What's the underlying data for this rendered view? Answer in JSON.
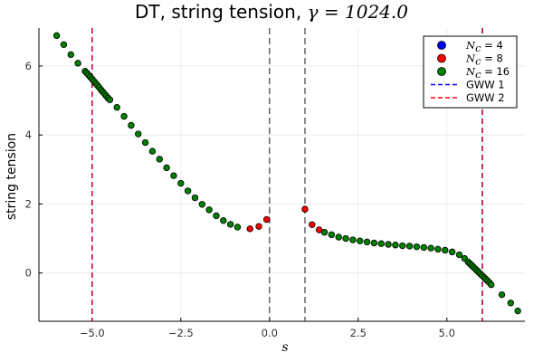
{
  "chart_data": {
    "type": "scatter",
    "title": "DT, string tension,",
    "title_math": "γ = 1024.0",
    "xlabel": "s",
    "ylabel": "string tension",
    "xlim": [
      -6.5,
      7.2
    ],
    "ylim": [
      -1.4,
      7.1
    ],
    "xticks": [
      -5.0,
      -2.5,
      0.0,
      2.5,
      5.0
    ],
    "xtick_labels": [
      "−5.0",
      "−2.5",
      "0.0",
      "2.5",
      "5.0"
    ],
    "yticks": [
      0,
      2,
      4,
      6
    ],
    "ytick_labels": [
      "0",
      "2",
      "4",
      "6"
    ],
    "grid": true,
    "legend_position": "top-right",
    "series": [
      {
        "name": "= 4",
        "name_math": "N",
        "name_sub": "c",
        "color": "#0000ff",
        "points": []
      },
      {
        "name": "= 8",
        "name_math": "N",
        "name_sub": "c",
        "color": "#ff0000",
        "points": [
          [
            -0.55,
            1.28
          ],
          [
            -0.3,
            1.35
          ],
          [
            -0.08,
            1.55
          ],
          [
            1.0,
            1.85
          ],
          [
            1.2,
            1.4
          ],
          [
            1.4,
            1.25
          ]
        ]
      },
      {
        "name": "= 16",
        "name_math": "N",
        "name_sub": "c",
        "color": "#008000",
        "points": [
          [
            -6.0,
            6.88
          ],
          [
            -5.8,
            6.62
          ],
          [
            -5.6,
            6.33
          ],
          [
            -5.4,
            6.08
          ],
          [
            -5.2,
            5.85
          ],
          [
            -5.15,
            5.8
          ],
          [
            -5.1,
            5.74
          ],
          [
            -5.05,
            5.68
          ],
          [
            -5.0,
            5.62
          ],
          [
            -4.95,
            5.56
          ],
          [
            -4.9,
            5.5
          ],
          [
            -4.85,
            5.44
          ],
          [
            -4.8,
            5.38
          ],
          [
            -4.75,
            5.31
          ],
          [
            -4.7,
            5.25
          ],
          [
            -4.65,
            5.19
          ],
          [
            -4.6,
            5.13
          ],
          [
            -4.55,
            5.07
          ],
          [
            -4.5,
            5.02
          ],
          [
            -4.3,
            4.8
          ],
          [
            -4.1,
            4.54
          ],
          [
            -3.9,
            4.28
          ],
          [
            -3.7,
            4.03
          ],
          [
            -3.5,
            3.78
          ],
          [
            -3.3,
            3.53
          ],
          [
            -3.1,
            3.3
          ],
          [
            -2.9,
            3.05
          ],
          [
            -2.7,
            2.82
          ],
          [
            -2.5,
            2.6
          ],
          [
            -2.3,
            2.38
          ],
          [
            -2.1,
            2.18
          ],
          [
            -1.9,
            1.99
          ],
          [
            -1.7,
            1.83
          ],
          [
            -1.5,
            1.66
          ],
          [
            -1.3,
            1.52
          ],
          [
            -1.1,
            1.41
          ],
          [
            -0.9,
            1.33
          ],
          [
            1.55,
            1.18
          ],
          [
            1.75,
            1.11
          ],
          [
            1.95,
            1.04
          ],
          [
            2.15,
            1.0
          ],
          [
            2.35,
            0.96
          ],
          [
            2.55,
            0.93
          ],
          [
            2.75,
            0.9
          ],
          [
            2.95,
            0.87
          ],
          [
            3.15,
            0.85
          ],
          [
            3.35,
            0.83
          ],
          [
            3.55,
            0.81
          ],
          [
            3.75,
            0.79
          ],
          [
            3.95,
            0.78
          ],
          [
            4.15,
            0.76
          ],
          [
            4.35,
            0.74
          ],
          [
            4.55,
            0.72
          ],
          [
            4.75,
            0.69
          ],
          [
            4.95,
            0.66
          ],
          [
            5.15,
            0.61
          ],
          [
            5.35,
            0.53
          ],
          [
            5.5,
            0.42
          ],
          [
            5.6,
            0.32
          ],
          [
            5.65,
            0.27
          ],
          [
            5.7,
            0.22
          ],
          [
            5.75,
            0.17
          ],
          [
            5.8,
            0.12
          ],
          [
            5.85,
            0.07
          ],
          [
            5.9,
            0.02
          ],
          [
            5.95,
            -0.03
          ],
          [
            6.0,
            -0.08
          ],
          [
            6.05,
            -0.13
          ],
          [
            6.1,
            -0.18
          ],
          [
            6.15,
            -0.23
          ],
          [
            6.2,
            -0.28
          ],
          [
            6.25,
            -0.34
          ],
          [
            6.55,
            -0.63
          ],
          [
            6.8,
            -0.87
          ],
          [
            7.0,
            -1.1
          ]
        ]
      }
    ],
    "vlines": [
      {
        "name": "GWW 1",
        "x": -5.0,
        "color": "#0000ff",
        "dash": "6,4"
      },
      {
        "name": "GWW 2",
        "x": -5.0,
        "color": "#ff0000",
        "dash": "6,4",
        "legend": true
      },
      {
        "name": "",
        "x": 6.0,
        "color": "#0000ff",
        "dash": "6,4"
      },
      {
        "name": "",
        "x": 6.0,
        "color": "#ff0000",
        "dash": "6,4"
      },
      {
        "name": "",
        "x": 0.0,
        "color": "#404040",
        "dash": "7,4"
      },
      {
        "name": "",
        "x": 1.0,
        "color": "#404040",
        "dash": "7,4"
      }
    ],
    "legend_entries": [
      {
        "kind": "marker",
        "math": "N",
        "sub": "c",
        "label": "= 4",
        "color": "#0000ff"
      },
      {
        "kind": "marker",
        "math": "N",
        "sub": "c",
        "label": "= 8",
        "color": "#ff0000"
      },
      {
        "kind": "marker",
        "math": "N",
        "sub": "c",
        "label": "= 16",
        "color": "#008000"
      },
      {
        "kind": "line",
        "label": "GWW 1",
        "color": "#0000ff"
      },
      {
        "kind": "line",
        "label": "GWW 2",
        "color": "#ff0000"
      }
    ]
  }
}
